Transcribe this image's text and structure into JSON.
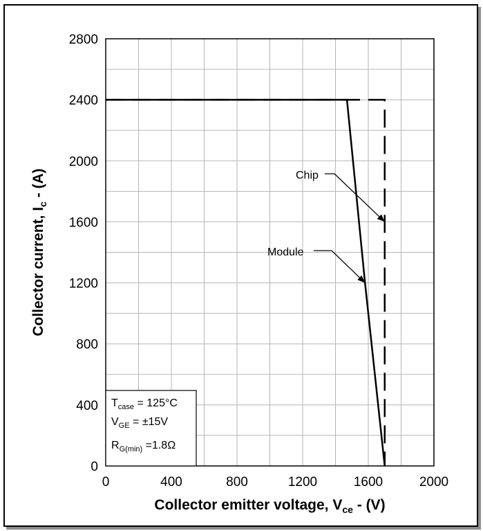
{
  "chart_data": {
    "type": "line",
    "xlabel": {
      "main": "Collector emitter voltage, V",
      "sub": "ce",
      "suffix": " - (V)"
    },
    "ylabel": {
      "main": "Collector current, I",
      "sub": "c",
      "suffix": " - (A)"
    },
    "xlim": [
      0,
      2000
    ],
    "ylim": [
      0,
      2800
    ],
    "x_ticks": [
      0,
      400,
      800,
      1200,
      1600,
      2000
    ],
    "y_ticks": [
      0,
      400,
      800,
      1200,
      1600,
      2000,
      2400,
      2800
    ],
    "grid": true,
    "series": [
      {
        "name": "Module",
        "style": "solid",
        "color": "#000000",
        "x": [
          0,
          1470,
          1580,
          1700
        ],
        "y": [
          2400,
          2400,
          1200,
          0
        ]
      },
      {
        "name": "Chip",
        "style": "dashed",
        "color": "#000000",
        "x": [
          0,
          1700,
          1700
        ],
        "y": [
          2400,
          2400,
          0
        ]
      }
    ],
    "annotations": [
      {
        "label": "Chip",
        "target_series": "Chip",
        "target_x": 1700,
        "target_y": 1600
      },
      {
        "label": "Module",
        "target_series": "Module",
        "target_x": 1580,
        "target_y": 1200
      }
    ],
    "conditions": [
      {
        "main": "T",
        "sub": "case",
        "rest": " = 125°C"
      },
      {
        "main": "V",
        "sub": "GE",
        "rest": " = ±15V"
      },
      {
        "main": "R",
        "sub": "G(min)",
        "rest": " =1.8Ω"
      }
    ]
  }
}
